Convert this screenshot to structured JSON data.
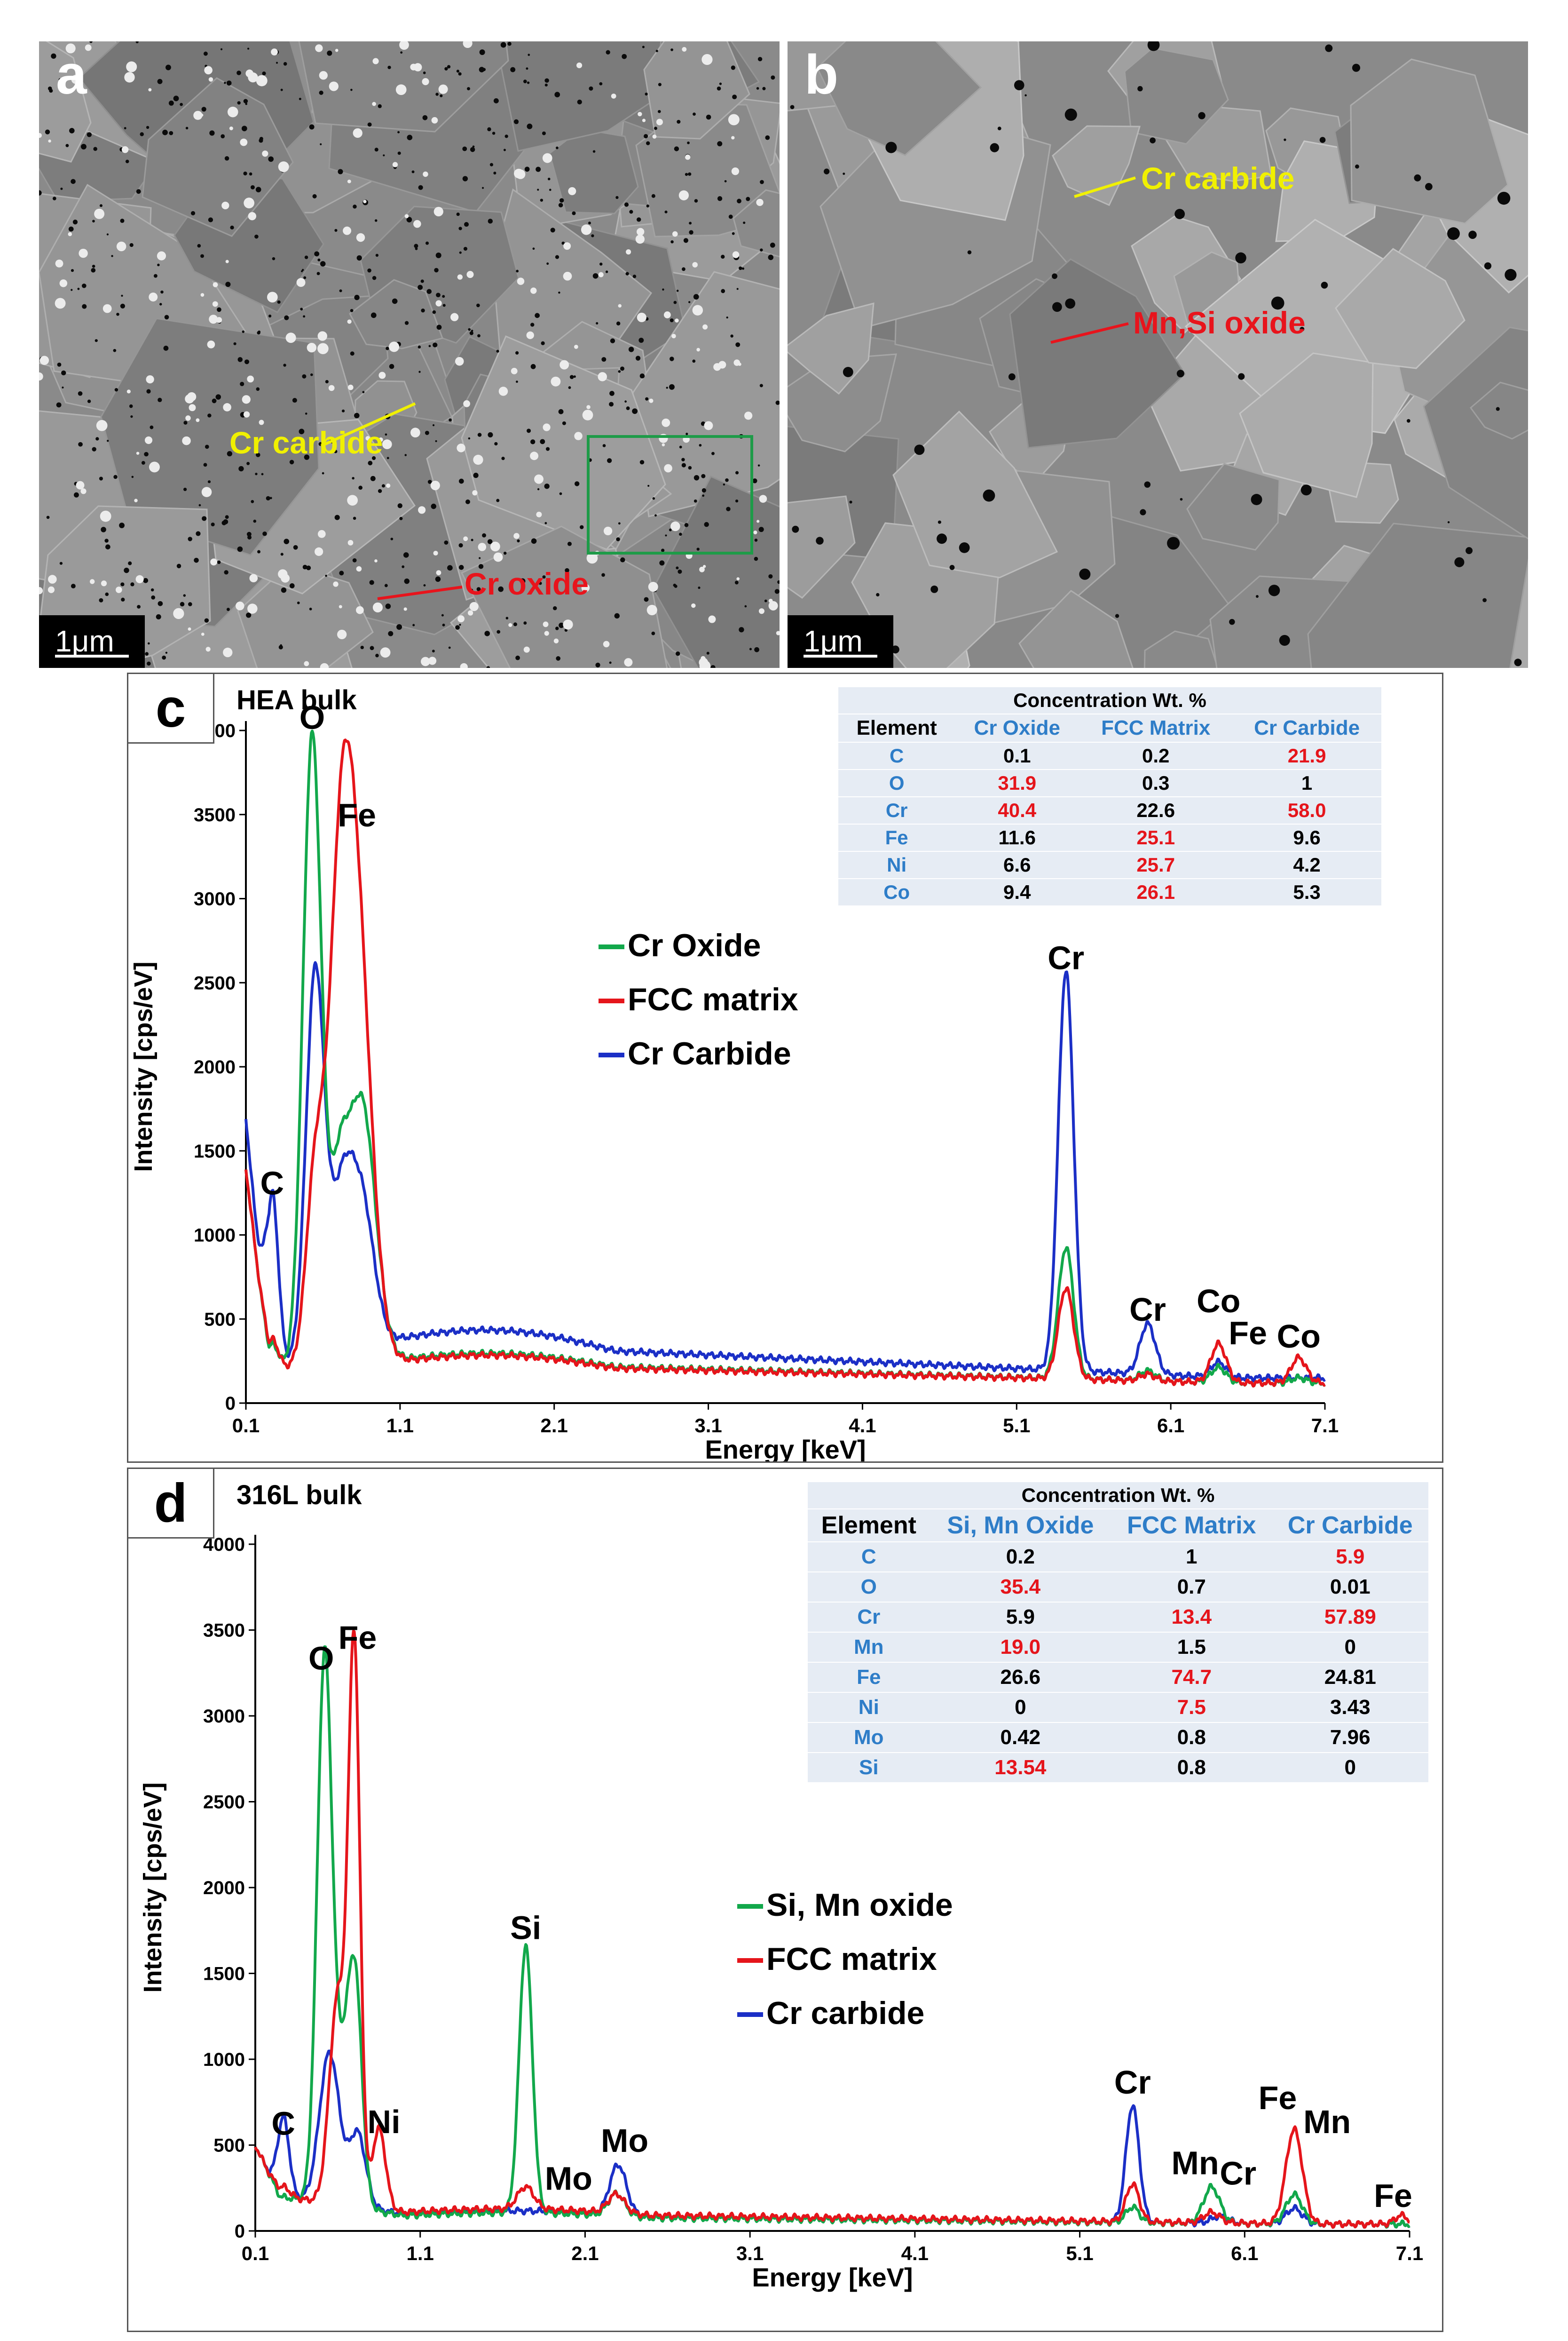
{
  "micrographs": [
    {
      "letter": "a",
      "scale_bar": "1μm",
      "annotations": [
        {
          "text": "Cr carbide",
          "color": "#f0f000"
        },
        {
          "text": "Cr oxide",
          "color": "#e8141c"
        }
      ],
      "inset_box_color": "#1e9b48"
    },
    {
      "letter": "b",
      "scale_bar": "1μm",
      "annotations": [
        {
          "text": "Cr carbide",
          "color": "#f0f000"
        },
        {
          "text": "Mn,Si oxide",
          "color": "#e8141c"
        }
      ]
    }
  ],
  "colors": {
    "oxide": "#12a84b",
    "matrix": "#e5151b",
    "carbide": "#1b2fc6",
    "highlight": "#e5151b",
    "element_label": "#2e7dc8"
  },
  "chart_data": [
    {
      "type": "line",
      "panel_letter": "c",
      "subtitle": "HEA bulk",
      "xlabel": "Energy [keV]",
      "ylabel": "Intensity [cps/eV]",
      "xlim": [
        0.1,
        7.1
      ],
      "ylim": [
        0,
        4000
      ],
      "xticks": [
        0.1,
        1.1,
        2.1,
        3.1,
        4.1,
        5.1,
        6.1,
        7.1
      ],
      "yticks": [
        0,
        500,
        1000,
        1500,
        2000,
        2500,
        3000,
        3500,
        4000
      ],
      "legend_placement": "center",
      "series": [
        {
          "name": "Cr Oxide",
          "key": "oxide",
          "peaks": [
            [
              0.27,
              150,
              0.04
            ],
            [
              0.53,
              3750,
              0.06
            ],
            [
              0.7,
              900,
              0.06
            ],
            [
              0.85,
              1550,
              0.09
            ],
            [
              5.42,
              780,
              0.05
            ],
            [
              5.95,
              60,
              0.05
            ],
            [
              6.41,
              90,
              0.05
            ],
            [
              6.93,
              30,
              0.05
            ]
          ],
          "baseline": {
            "start": 1400,
            "mid": 250,
            "end": 120
          }
        },
        {
          "name": "FCC matrix",
          "key": "matrix",
          "peaks": [
            [
              0.27,
              180,
              0.04
            ],
            [
              0.55,
              1100,
              0.06
            ],
            [
              0.7,
              1500,
              0.07
            ],
            [
              0.8,
              2900,
              0.1
            ],
            [
              5.42,
              540,
              0.05
            ],
            [
              5.95,
              40,
              0.05
            ],
            [
              6.41,
              230,
              0.05
            ],
            [
              6.93,
              150,
              0.05
            ]
          ],
          "baseline": {
            "start": 1400,
            "mid": 240,
            "end": 120
          }
        },
        {
          "name": "Cr Carbide",
          "key": "carbide",
          "peaks": [
            [
              0.27,
              1050,
              0.04
            ],
            [
              0.55,
              2300,
              0.06
            ],
            [
              0.72,
              850,
              0.07
            ],
            [
              0.85,
              850,
              0.08
            ],
            [
              5.42,
              2380,
              0.05
            ],
            [
              5.95,
              300,
              0.05
            ],
            [
              6.41,
              90,
              0.05
            ]
          ],
          "baseline": {
            "start": 1700,
            "mid": 370,
            "end": 150
          }
        }
      ],
      "peak_labels": [
        {
          "text": "C",
          "x": 0.27,
          "y": 1240
        },
        {
          "text": "O",
          "x": 0.53,
          "y": 4010
        },
        {
          "text": "Fe",
          "x": 0.82,
          "y": 3430
        },
        {
          "text": "Cr",
          "x": 5.42,
          "y": 2580
        },
        {
          "text": "Cr",
          "x": 5.95,
          "y": 490
        },
        {
          "text": "Co",
          "x": 6.41,
          "y": 540
        },
        {
          "text": "Fe",
          "x": 6.6,
          "y": 350
        },
        {
          "text": "Co",
          "x": 6.93,
          "y": 330
        }
      ],
      "table": {
        "title": "Concentration Wt. %",
        "columns": [
          "Element",
          "Cr Oxide",
          "FCC Matrix",
          "Cr Carbide"
        ],
        "rows": [
          {
            "el": "C",
            "vals": [
              "0.1",
              "0.2",
              "21.9"
            ],
            "hl": [
              false,
              false,
              true
            ]
          },
          {
            "el": "O",
            "vals": [
              "31.9",
              "0.3",
              "1"
            ],
            "hl": [
              true,
              false,
              false
            ]
          },
          {
            "el": "Cr",
            "vals": [
              "40.4",
              "22.6",
              "58.0"
            ],
            "hl": [
              true,
              false,
              true
            ]
          },
          {
            "el": "Fe",
            "vals": [
              "11.6",
              "25.1",
              "9.6"
            ],
            "hl": [
              false,
              true,
              false
            ]
          },
          {
            "el": "Ni",
            "vals": [
              "6.6",
              "25.7",
              "4.2"
            ],
            "hl": [
              false,
              true,
              false
            ]
          },
          {
            "el": "Co",
            "vals": [
              "9.4",
              "26.1",
              "5.3"
            ],
            "hl": [
              false,
              true,
              false
            ]
          }
        ]
      }
    },
    {
      "type": "line",
      "panel_letter": "d",
      "subtitle": "316L bulk",
      "xlabel": "Energy [keV]",
      "ylabel": "Intensity  [cps/eV]",
      "xlim": [
        0.1,
        7.1
      ],
      "ylim": [
        0,
        4000
      ],
      "xticks": [
        0.1,
        1.1,
        2.1,
        3.1,
        4.1,
        5.1,
        6.1,
        7.1
      ],
      "yticks": [
        0,
        500,
        1000,
        1500,
        2000,
        2500,
        3000,
        3500,
        4000
      ],
      "legend_placement": "center-right",
      "series": [
        {
          "name": "Si, Mn oxide",
          "key": "oxide",
          "peaks": [
            [
              0.52,
              3150,
              0.045
            ],
            [
              0.65,
              850,
              0.06
            ],
            [
              0.71,
              900,
              0.04
            ],
            [
              1.74,
              1560,
              0.04
            ],
            [
              2.29,
              130,
              0.05
            ],
            [
              5.42,
              90,
              0.04
            ],
            [
              5.9,
              210,
              0.05
            ],
            [
              6.4,
              170,
              0.05
            ]
          ],
          "baseline": {
            "start": 500,
            "mid": 90,
            "end": 40
          }
        },
        {
          "name": "FCC matrix",
          "key": "matrix",
          "peaks": [
            [
              0.27,
              60,
              0.04
            ],
            [
              0.6,
              1200,
              0.05
            ],
            [
              0.7,
              3200,
              0.035
            ],
            [
              0.85,
              470,
              0.04
            ],
            [
              1.74,
              130,
              0.05
            ],
            [
              2.29,
              110,
              0.05
            ],
            [
              5.42,
              220,
              0.04
            ],
            [
              5.9,
              60,
              0.05
            ],
            [
              6.4,
              550,
              0.05
            ],
            [
              7.05,
              50,
              0.04
            ]
          ],
          "baseline": {
            "start": 500,
            "mid": 110,
            "end": 40
          }
        },
        {
          "name": "Cr carbide",
          "key": "carbide",
          "peaks": [
            [
              0.27,
              470,
              0.035
            ],
            [
              0.55,
              880,
              0.06
            ],
            [
              0.72,
              430,
              0.05
            ],
            [
              2.3,
              290,
              0.05
            ],
            [
              5.42,
              680,
              0.04
            ],
            [
              5.95,
              40,
              0.05
            ],
            [
              6.4,
              90,
              0.05
            ]
          ],
          "baseline": {
            "start": 500,
            "mid": 100,
            "end": 40
          }
        }
      ],
      "peak_labels": [
        {
          "text": "C",
          "x": 0.27,
          "y": 560
        },
        {
          "text": "O",
          "x": 0.5,
          "y": 3270
        },
        {
          "text": "Fe",
          "x": 0.72,
          "y": 3390
        },
        {
          "text": "Ni",
          "x": 0.88,
          "y": 570
        },
        {
          "text": "Si",
          "x": 1.74,
          "y": 1700
        },
        {
          "text": "Mo",
          "x": 2.0,
          "y": 240
        },
        {
          "text": "Mo",
          "x": 2.34,
          "y": 460
        },
        {
          "text": "Cr",
          "x": 5.42,
          "y": 800
        },
        {
          "text": "Mn",
          "x": 5.8,
          "y": 330
        },
        {
          "text": "Cr",
          "x": 6.06,
          "y": 270
        },
        {
          "text": "Fe",
          "x": 6.3,
          "y": 710
        },
        {
          "text": "Mn",
          "x": 6.6,
          "y": 570
        },
        {
          "text": "Fe",
          "x": 7.0,
          "y": 140
        }
      ],
      "table": {
        "title": "Concentration Wt. %",
        "columns": [
          "Element",
          "Si, Mn Oxide",
          "FCC Matrix",
          "Cr Carbide"
        ],
        "rows": [
          {
            "el": "C",
            "vals": [
              "0.2",
              "1",
              "5.9"
            ],
            "hl": [
              false,
              false,
              true
            ]
          },
          {
            "el": "O",
            "vals": [
              "35.4",
              "0.7",
              "0.01"
            ],
            "hl": [
              true,
              false,
              false
            ]
          },
          {
            "el": "Cr",
            "vals": [
              "5.9",
              "13.4",
              "57.89"
            ],
            "hl": [
              false,
              true,
              true
            ]
          },
          {
            "el": "Mn",
            "vals": [
              "19.0",
              "1.5",
              "0"
            ],
            "hl": [
              true,
              false,
              false
            ]
          },
          {
            "el": "Fe",
            "vals": [
              "26.6",
              "74.7",
              "24.81"
            ],
            "hl": [
              false,
              true,
              false
            ]
          },
          {
            "el": "Ni",
            "vals": [
              "0",
              "7.5",
              "3.43"
            ],
            "hl": [
              false,
              true,
              false
            ]
          },
          {
            "el": "Mo",
            "vals": [
              "0.42",
              "0.8",
              "7.96"
            ],
            "hl": [
              false,
              false,
              false
            ]
          },
          {
            "el": "Si",
            "vals": [
              "13.54",
              "0.8",
              "0"
            ],
            "hl": [
              true,
              false,
              false
            ]
          }
        ]
      }
    }
  ]
}
